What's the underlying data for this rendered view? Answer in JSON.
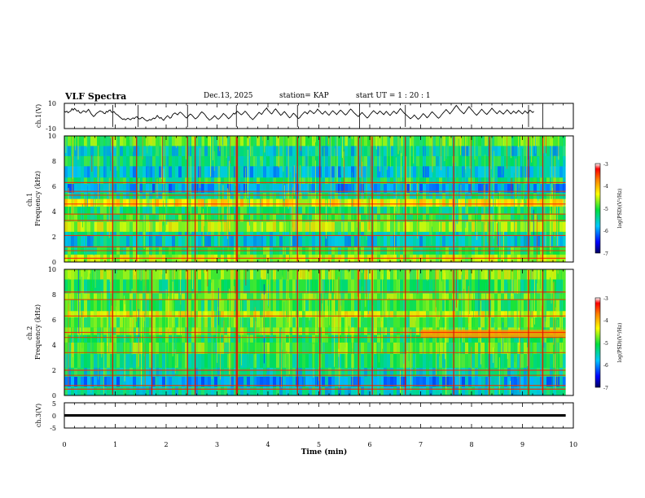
{
  "header": {
    "title": "VLF Spectra",
    "date": "Dec.13, 2025",
    "station_label": "station= KAP",
    "start_label": "start  UT =   1 : 20 : 1"
  },
  "colorbar": {
    "min": -7,
    "max": -3,
    "ticks": [
      "-3",
      "-4",
      "-5",
      "-6",
      "-7"
    ],
    "label": "log(PSD)(V²/Hz)"
  },
  "chart_data": [
    {
      "id": "ch1_waveform",
      "type": "line",
      "ylabel": "ch.1(V)",
      "ylim": [
        -10,
        10
      ],
      "yticks": [
        "10",
        "-10"
      ],
      "xlim": [
        0,
        9.85
      ],
      "samples_per_min": 40,
      "series": [
        {
          "name": "ch.1",
          "values": [
            3.6,
            3.1,
            3.8,
            2.5,
            3.4,
            3.9,
            5.8,
            4.6,
            6.0,
            5.0,
            3.8,
            4.4,
            2.6,
            2.2,
            3.3,
            4.1,
            3.7,
            2.9,
            4.0,
            5.2,
            3.6,
            1.8,
            0.6,
            -0.5,
            0.4,
            1.8,
            2.6,
            3.2,
            4.0,
            3.6,
            3.3,
            2.2,
            1.8,
            3.6,
            3.0,
            4.3,
            4.8,
            3.1,
            2.7,
            3.5,
            2.1,
            1.2,
            0.8,
            -0.3,
            -1.2,
            -2.0,
            -2.8,
            -2.2,
            -3.1,
            -2.4,
            -1.8,
            -2.5,
            -3.0,
            -2.1,
            -1.5,
            -2.2,
            -1.0,
            -0.6,
            -1.7,
            -2.4,
            -2.0,
            -1.1,
            -1.6,
            -2.6,
            -3.4,
            -4.0,
            -3.6,
            -2.8,
            -3.3,
            -2.5,
            -1.6,
            -2.2,
            -1.3,
            0.4,
            -0.8,
            -1.9,
            -1.2,
            -2.6,
            -3.5,
            -2.1,
            -0.9,
            0.2,
            -0.6,
            -1.8,
            -1.2,
            0.8,
            1.9,
            2.4,
            1.6,
            0.9,
            2.1,
            3.0,
            2.4,
            1.4,
            0.3,
            -0.8,
            -1.6,
            -0.7,
            0.6,
            1.5,
            0.9,
            -0.2,
            -1.4,
            -2.3,
            -1.6,
            -0.6,
            0.7,
            2.2,
            3.2,
            2.5,
            1.6,
            0.3,
            -1.2,
            -2.1,
            -3.3,
            -2.8,
            -1.9,
            -1.0,
            0.2,
            -0.7,
            -1.9,
            -2.6,
            -1.8,
            -0.6,
            0.5,
            2.0,
            1.1,
            0.3,
            -1.0,
            -2.2,
            -1.5,
            -0.4,
            0.9,
            2.2,
            1.5,
            2.8,
            3.6,
            2.7,
            1.8,
            0.9,
            1.6,
            2.6,
            3.8,
            2.9,
            1.5,
            0.4,
            -1.0,
            -1.8,
            -2.9,
            -2.0,
            -0.8,
            0.4,
            1.7,
            2.9,
            2.1,
            1.2,
            2.6,
            4.2,
            5.1,
            6.3,
            4.6,
            3.6,
            2.4,
            1.6,
            3.0,
            4.6,
            5.6,
            4.4,
            3.0,
            1.8,
            0.6,
            1.2,
            2.5,
            3.4,
            2.2,
            1.0,
            -0.4,
            -1.5,
            -0.7,
            0.8,
            2.1,
            1.4,
            0.2,
            -1.1,
            -2.0,
            -1.3,
            0.1,
            1.3,
            2.4,
            3.3,
            2.6,
            1.7,
            3.1,
            4.4,
            3.6,
            2.8,
            1.9,
            2.7,
            3.9,
            5.4,
            4.3,
            3.4,
            2.1,
            1.4,
            2.8,
            3.7,
            2.6,
            1.5,
            0.6,
            1.9,
            3.2,
            4.1,
            3.0,
            2.2,
            1.1,
            2.3,
            3.5,
            4.6,
            3.8,
            2.7,
            1.6,
            0.8,
            1.7,
            2.9,
            4.3,
            5.5,
            4.6,
            3.3,
            2.2,
            1.3,
            0.4,
            -0.5,
            0.6,
            1.8,
            2.7,
            1.6,
            0.5,
            -0.6,
            -1.6,
            -0.8,
            0.7,
            2.0,
            3.1,
            4.2,
            3.3,
            2.4,
            1.6,
            2.8,
            3.9,
            3.0,
            2.0,
            1.1,
            2.4,
            3.6,
            2.5,
            1.3,
            0.4,
            1.6,
            2.9,
            3.8,
            2.7,
            1.8,
            3.0,
            4.4,
            5.8,
            4.7,
            3.5,
            2.3,
            1.4,
            0.6,
            -0.4,
            -1.3,
            -2.2,
            -1.4,
            -0.5,
            0.8,
            -0.3,
            -1.5,
            -2.6,
            -1.9,
            -0.8,
            0.6,
            1.9,
            1.0,
            -0.2,
            -1.4,
            -0.6,
            0.7,
            2.1,
            3.3,
            2.4,
            1.3,
            0.2,
            -0.9,
            -1.8,
            -1.0,
            0.3,
            1.6,
            2.8,
            3.9,
            5.1,
            4.0,
            2.9,
            1.7,
            2.9,
            4.2,
            5.6,
            7.0,
            8.4,
            7.2,
            5.8,
            4.5,
            3.6,
            2.6,
            1.8,
            3.1,
            4.6,
            6.0,
            7.4,
            6.2,
            5.0,
            3.8,
            2.6,
            1.5,
            0.6,
            1.7,
            2.8,
            4.1,
            5.3,
            4.2,
            3.0,
            2.0,
            1.2,
            2.4,
            3.6,
            4.8,
            6.1,
            5.0,
            3.9,
            2.8,
            1.8,
            2.9,
            4.1,
            3.2,
            2.3,
            1.5,
            2.6,
            3.7,
            4.9,
            3.8,
            2.6,
            1.6,
            2.7,
            3.9,
            3.0,
            2.1,
            3.3,
            4.4,
            3.4,
            2.5,
            1.6,
            2.8,
            4.0,
            3.1,
            2.2,
            3.4,
            4.6,
            3.7,
            2.7,
            3.6
          ]
        }
      ]
    },
    {
      "id": "ch1_spectrogram",
      "type": "heatmap",
      "ylabel": "ch.1\nFrequency (kHz)",
      "ylim": [
        0,
        10
      ],
      "yticks": [
        "0",
        "2",
        "4",
        "6",
        "8",
        "10"
      ],
      "xlim": [
        0,
        9.85
      ],
      "freq_bands_khz": [
        0,
        0.6,
        1.2,
        2.1,
        2.4,
        3.2,
        3.8,
        4.4,
        5.0,
        5.5,
        6.2,
        6.7,
        7.6,
        8.4,
        9.2,
        10
      ],
      "band_levels": [
        -4.6,
        -5.1,
        -5.6,
        -5.4,
        -4.6,
        -5.0,
        -5.2,
        -4.3,
        -5.3,
        -5.9,
        -5.2,
        -5.7,
        -5.3,
        -5.5,
        -4.9
      ],
      "lines_khz": [
        0.3,
        0.9,
        1.2,
        2.1,
        3.3,
        3.8,
        4.6,
        5.3,
        5.6,
        6.3
      ],
      "impulses_min": [
        0.95,
        1.42,
        2.42,
        2.57,
        3.38,
        3.4,
        4.58,
        5.02,
        5.78,
        6.05,
        6.7,
        7.65,
        8.35,
        9.12,
        9.4
      ]
    },
    {
      "id": "ch2_spectrogram",
      "type": "heatmap",
      "ylabel": "ch.2\nFrequency (kHz)",
      "ylim": [
        0,
        10
      ],
      "yticks": [
        "0",
        "2",
        "4",
        "6",
        "8",
        "10"
      ],
      "xlim": [
        0,
        9.85
      ],
      "freq_bands_khz": [
        0,
        0.7,
        1.5,
        2.2,
        3.3,
        4.2,
        4.8,
        5.4,
        6.2,
        6.7,
        7.6,
        8.1,
        9.2,
        10
      ],
      "band_levels": [
        -5.5,
        -5.9,
        -5.4,
        -5.2,
        -4.9,
        -5.1,
        -4.8,
        -4.9,
        -4.5,
        -5.0,
        -4.8,
        -5.1,
        -4.7
      ],
      "lines_khz": [
        0.5,
        0.8,
        1.6,
        2.0,
        3.4,
        4.6,
        5.0,
        6.3,
        7.6,
        8.2
      ],
      "impulses_min": [
        0.95,
        1.72,
        2.42,
        2.57,
        3.38,
        3.4,
        4.58,
        5.02,
        5.78,
        6.05,
        6.7,
        7.65,
        8.35,
        9.12,
        9.4
      ],
      "event": {
        "from_min": 7.0,
        "to_min": 9.85,
        "from_khz": 4.6,
        "to_khz": 5.2
      }
    },
    {
      "id": "ch3_waveform",
      "type": "area",
      "ylabel": "ch.3(V)",
      "ylim": [
        -5,
        5
      ],
      "yticks": [
        "5",
        "0",
        "-5"
      ],
      "xlim": [
        0,
        9.85
      ],
      "band": [
        -0.5,
        0.5
      ]
    }
  ],
  "x_axis": {
    "label": "Time (min)",
    "range": [
      0,
      10
    ],
    "ticks": [
      "0",
      "1",
      "2",
      "3",
      "4",
      "5",
      "6",
      "7",
      "8",
      "9",
      "10"
    ]
  }
}
